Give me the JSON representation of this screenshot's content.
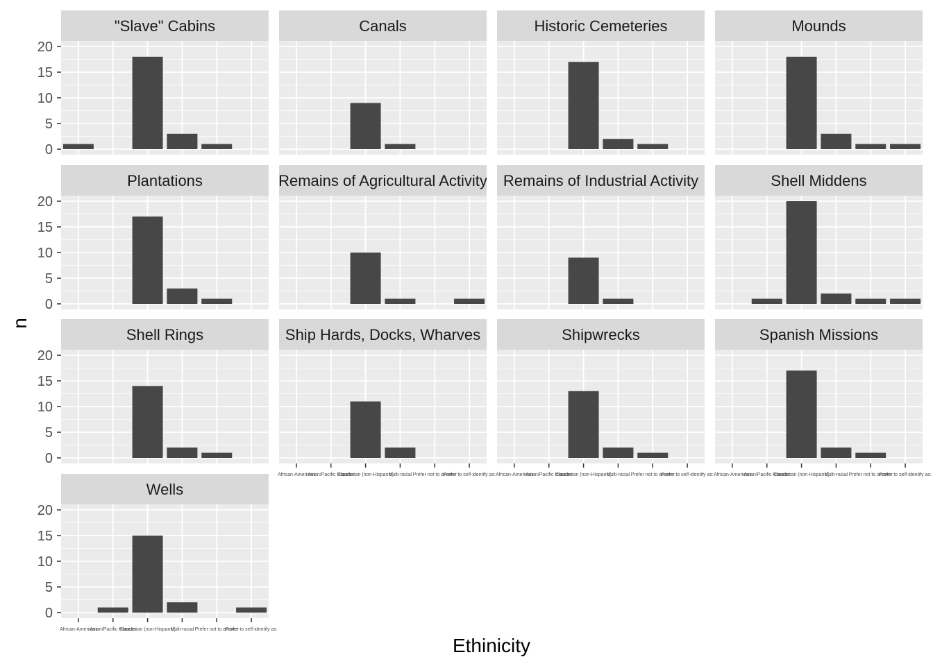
{
  "chart_data": {
    "type": "bar",
    "layout": "facet_wrap",
    "xlabel": "Ethinicity",
    "ylabel": "n",
    "ylim": [
      0,
      20
    ],
    "yticks": [
      0,
      5,
      10,
      15,
      20
    ],
    "categories": [
      "African-American",
      "Asian/Pacific Islander",
      "Caucasian (non-Hispanic)",
      "Multi-racial",
      "Prefer not to answer",
      "Prefer to self-identify as:"
    ],
    "grid": true,
    "legend": "none",
    "colors": {
      "bar": "#474747",
      "panel_bg": "#ebebeb",
      "strip_bg": "#d9d9d9",
      "grid": "#ffffff"
    },
    "facets": [
      {
        "title": "\"Slave\" Cabins",
        "values": [
          1,
          0,
          18,
          3,
          1,
          0
        ]
      },
      {
        "title": "Canals",
        "values": [
          0,
          0,
          9,
          1,
          0,
          0
        ]
      },
      {
        "title": "Historic Cemeteries",
        "values": [
          0,
          0,
          17,
          2,
          1,
          0
        ]
      },
      {
        "title": "Mounds",
        "values": [
          0,
          0,
          18,
          3,
          1,
          1
        ]
      },
      {
        "title": "Plantations",
        "values": [
          0,
          0,
          17,
          3,
          1,
          0
        ]
      },
      {
        "title": "Remains of Agricultural Activity",
        "values": [
          0,
          0,
          10,
          1,
          0,
          1
        ]
      },
      {
        "title": "Remains of Industrial Activity",
        "values": [
          0,
          0,
          9,
          1,
          0,
          0
        ]
      },
      {
        "title": "Shell Middens",
        "values": [
          0,
          1,
          20,
          2,
          1,
          1
        ]
      },
      {
        "title": "Shell Rings",
        "values": [
          0,
          0,
          14,
          2,
          1,
          0
        ]
      },
      {
        "title": "Ship Hards, Docks, Wharves",
        "values": [
          0,
          0,
          11,
          2,
          0,
          0
        ]
      },
      {
        "title": "Shipwrecks",
        "values": [
          0,
          0,
          13,
          2,
          1,
          0
        ]
      },
      {
        "title": "Spanish Missions",
        "values": [
          0,
          0,
          17,
          2,
          1,
          0
        ]
      },
      {
        "title": "Wells",
        "values": [
          0,
          1,
          15,
          2,
          0,
          1
        ]
      }
    ]
  }
}
